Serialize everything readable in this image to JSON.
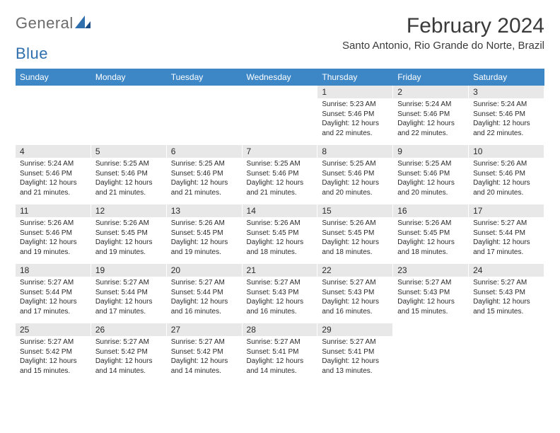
{
  "logo": {
    "text1": "General",
    "text2": "Blue",
    "text1_color": "#6b6b6b",
    "text2_color": "#2f6fad"
  },
  "title": "February 2024",
  "location": "Santo Antonio, Rio Grande do Norte, Brazil",
  "colors": {
    "header_band": "#3d87c7",
    "header_text": "#ffffff",
    "daynum_band": "#e8e8e8",
    "body_text": "#2a2a2a",
    "page_bg": "#ffffff"
  },
  "day_names": [
    "Sunday",
    "Monday",
    "Tuesday",
    "Wednesday",
    "Thursday",
    "Friday",
    "Saturday"
  ],
  "weeks": [
    [
      {
        "n": "",
        "sr": "",
        "ss": "",
        "dl": ""
      },
      {
        "n": "",
        "sr": "",
        "ss": "",
        "dl": ""
      },
      {
        "n": "",
        "sr": "",
        "ss": "",
        "dl": ""
      },
      {
        "n": "",
        "sr": "",
        "ss": "",
        "dl": ""
      },
      {
        "n": "1",
        "sr": "Sunrise: 5:23 AM",
        "ss": "Sunset: 5:46 PM",
        "dl": "Daylight: 12 hours and 22 minutes."
      },
      {
        "n": "2",
        "sr": "Sunrise: 5:24 AM",
        "ss": "Sunset: 5:46 PM",
        "dl": "Daylight: 12 hours and 22 minutes."
      },
      {
        "n": "3",
        "sr": "Sunrise: 5:24 AM",
        "ss": "Sunset: 5:46 PM",
        "dl": "Daylight: 12 hours and 22 minutes."
      }
    ],
    [
      {
        "n": "4",
        "sr": "Sunrise: 5:24 AM",
        "ss": "Sunset: 5:46 PM",
        "dl": "Daylight: 12 hours and 21 minutes."
      },
      {
        "n": "5",
        "sr": "Sunrise: 5:25 AM",
        "ss": "Sunset: 5:46 PM",
        "dl": "Daylight: 12 hours and 21 minutes."
      },
      {
        "n": "6",
        "sr": "Sunrise: 5:25 AM",
        "ss": "Sunset: 5:46 PM",
        "dl": "Daylight: 12 hours and 21 minutes."
      },
      {
        "n": "7",
        "sr": "Sunrise: 5:25 AM",
        "ss": "Sunset: 5:46 PM",
        "dl": "Daylight: 12 hours and 21 minutes."
      },
      {
        "n": "8",
        "sr": "Sunrise: 5:25 AM",
        "ss": "Sunset: 5:46 PM",
        "dl": "Daylight: 12 hours and 20 minutes."
      },
      {
        "n": "9",
        "sr": "Sunrise: 5:25 AM",
        "ss": "Sunset: 5:46 PM",
        "dl": "Daylight: 12 hours and 20 minutes."
      },
      {
        "n": "10",
        "sr": "Sunrise: 5:26 AM",
        "ss": "Sunset: 5:46 PM",
        "dl": "Daylight: 12 hours and 20 minutes."
      }
    ],
    [
      {
        "n": "11",
        "sr": "Sunrise: 5:26 AM",
        "ss": "Sunset: 5:46 PM",
        "dl": "Daylight: 12 hours and 19 minutes."
      },
      {
        "n": "12",
        "sr": "Sunrise: 5:26 AM",
        "ss": "Sunset: 5:45 PM",
        "dl": "Daylight: 12 hours and 19 minutes."
      },
      {
        "n": "13",
        "sr": "Sunrise: 5:26 AM",
        "ss": "Sunset: 5:45 PM",
        "dl": "Daylight: 12 hours and 19 minutes."
      },
      {
        "n": "14",
        "sr": "Sunrise: 5:26 AM",
        "ss": "Sunset: 5:45 PM",
        "dl": "Daylight: 12 hours and 18 minutes."
      },
      {
        "n": "15",
        "sr": "Sunrise: 5:26 AM",
        "ss": "Sunset: 5:45 PM",
        "dl": "Daylight: 12 hours and 18 minutes."
      },
      {
        "n": "16",
        "sr": "Sunrise: 5:26 AM",
        "ss": "Sunset: 5:45 PM",
        "dl": "Daylight: 12 hours and 18 minutes."
      },
      {
        "n": "17",
        "sr": "Sunrise: 5:27 AM",
        "ss": "Sunset: 5:44 PM",
        "dl": "Daylight: 12 hours and 17 minutes."
      }
    ],
    [
      {
        "n": "18",
        "sr": "Sunrise: 5:27 AM",
        "ss": "Sunset: 5:44 PM",
        "dl": "Daylight: 12 hours and 17 minutes."
      },
      {
        "n": "19",
        "sr": "Sunrise: 5:27 AM",
        "ss": "Sunset: 5:44 PM",
        "dl": "Daylight: 12 hours and 17 minutes."
      },
      {
        "n": "20",
        "sr": "Sunrise: 5:27 AM",
        "ss": "Sunset: 5:44 PM",
        "dl": "Daylight: 12 hours and 16 minutes."
      },
      {
        "n": "21",
        "sr": "Sunrise: 5:27 AM",
        "ss": "Sunset: 5:43 PM",
        "dl": "Daylight: 12 hours and 16 minutes."
      },
      {
        "n": "22",
        "sr": "Sunrise: 5:27 AM",
        "ss": "Sunset: 5:43 PM",
        "dl": "Daylight: 12 hours and 16 minutes."
      },
      {
        "n": "23",
        "sr": "Sunrise: 5:27 AM",
        "ss": "Sunset: 5:43 PM",
        "dl": "Daylight: 12 hours and 15 minutes."
      },
      {
        "n": "24",
        "sr": "Sunrise: 5:27 AM",
        "ss": "Sunset: 5:43 PM",
        "dl": "Daylight: 12 hours and 15 minutes."
      }
    ],
    [
      {
        "n": "25",
        "sr": "Sunrise: 5:27 AM",
        "ss": "Sunset: 5:42 PM",
        "dl": "Daylight: 12 hours and 15 minutes."
      },
      {
        "n": "26",
        "sr": "Sunrise: 5:27 AM",
        "ss": "Sunset: 5:42 PM",
        "dl": "Daylight: 12 hours and 14 minutes."
      },
      {
        "n": "27",
        "sr": "Sunrise: 5:27 AM",
        "ss": "Sunset: 5:42 PM",
        "dl": "Daylight: 12 hours and 14 minutes."
      },
      {
        "n": "28",
        "sr": "Sunrise: 5:27 AM",
        "ss": "Sunset: 5:41 PM",
        "dl": "Daylight: 12 hours and 14 minutes."
      },
      {
        "n": "29",
        "sr": "Sunrise: 5:27 AM",
        "ss": "Sunset: 5:41 PM",
        "dl": "Daylight: 12 hours and 13 minutes."
      },
      {
        "n": "",
        "sr": "",
        "ss": "",
        "dl": ""
      },
      {
        "n": "",
        "sr": "",
        "ss": "",
        "dl": ""
      }
    ]
  ]
}
